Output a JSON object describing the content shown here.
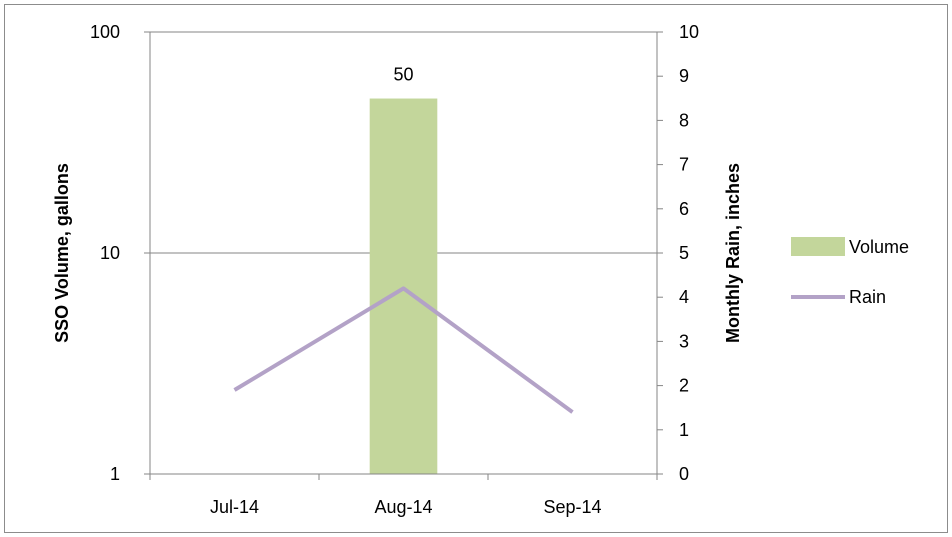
{
  "chart_data": {
    "type": "bar",
    "categories": [
      "Jul-14",
      "Aug-14",
      "Sep-14"
    ],
    "ylabel": "SSO Volume, gallons",
    "y2label": "Monthly Rain, inches",
    "y_scale": "log",
    "ylim": [
      1,
      100
    ],
    "y_ticks": [
      "1",
      "10",
      "100"
    ],
    "y2lim": [
      0,
      10
    ],
    "y2_ticks": [
      "0",
      "1",
      "2",
      "3",
      "4",
      "5",
      "6",
      "7",
      "8",
      "9",
      "10"
    ],
    "grid": "major y gridlines on left axis",
    "legend_position": "right",
    "series": [
      {
        "name": "Volume",
        "type": "bar",
        "axis": "left",
        "values": [
          null,
          50,
          null
        ],
        "data_labels": [
          "",
          "50",
          ""
        ],
        "color": "#c3d69b"
      },
      {
        "name": "Rain",
        "type": "line",
        "axis": "right",
        "values": [
          1.9,
          4.2,
          1.4
        ],
        "color": "#b3a2c7"
      }
    ]
  }
}
